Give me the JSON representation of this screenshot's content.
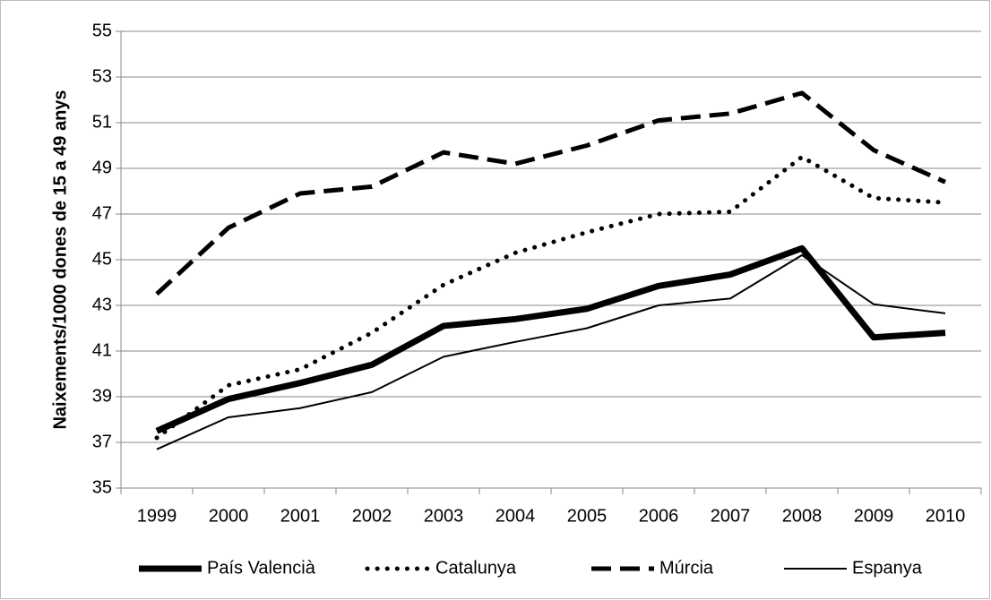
{
  "chart_data": {
    "type": "line",
    "y_label": "Naixements/1000 dones de 15 a 49 anys",
    "categories": [
      "1999",
      "2000",
      "2001",
      "2002",
      "2003",
      "2004",
      "2005",
      "2006",
      "2007",
      "2008",
      "2009",
      "2010"
    ],
    "series": [
      {
        "name": "País Valencià",
        "color": "#000000",
        "style": "solid",
        "weight": "thick",
        "values": [
          37.5,
          38.9,
          39.6,
          40.4,
          42.1,
          42.4,
          42.85,
          43.85,
          44.35,
          45.5,
          41.6,
          41.8
        ]
      },
      {
        "name": "Catalunya",
        "color": "#000000",
        "style": "dotted",
        "weight": "medium",
        "values": [
          37.2,
          39.5,
          40.2,
          41.8,
          43.9,
          45.3,
          46.2,
          47.0,
          47.1,
          49.5,
          47.7,
          47.5
        ]
      },
      {
        "name": "Múrcia",
        "color": "#000000",
        "style": "dashed",
        "weight": "medium",
        "values": [
          43.5,
          46.4,
          47.9,
          48.2,
          49.7,
          49.2,
          50.0,
          51.1,
          51.4,
          52.3,
          49.8,
          48.4
        ]
      },
      {
        "name": "Espanya",
        "color": "#000000",
        "style": "solid",
        "weight": "thin",
        "values": [
          36.7,
          38.1,
          38.5,
          39.2,
          40.75,
          41.4,
          42.0,
          43.0,
          43.3,
          45.2,
          43.05,
          42.65
        ]
      }
    ],
    "ylim": [
      35,
      55
    ],
    "yticks": [
      35,
      37,
      39,
      41,
      43,
      45,
      47,
      49,
      51,
      53,
      55
    ],
    "grid": true,
    "legend": "bottom"
  }
}
